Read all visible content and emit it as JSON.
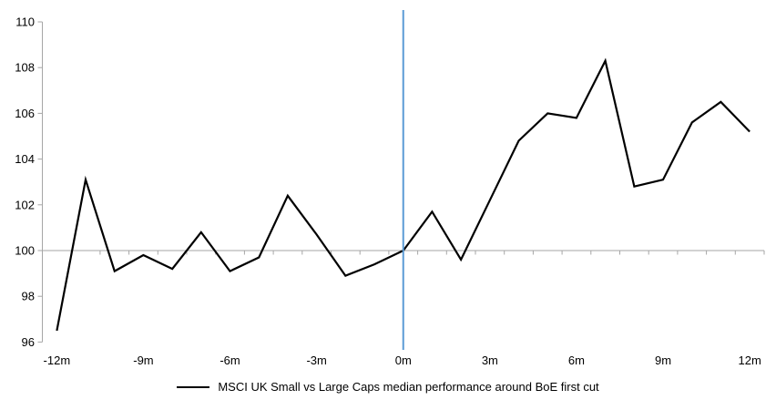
{
  "chart_data": {
    "type": "line",
    "x": [
      -12,
      -11,
      -10,
      -9,
      -8,
      -7,
      -6,
      -5,
      -4,
      -3,
      -2,
      -1,
      0,
      1,
      2,
      3,
      4,
      5,
      6,
      7,
      8,
      9,
      10,
      11,
      12
    ],
    "series": [
      {
        "name": "MSCI UK Small vs Large Caps median performance around BoE first cut",
        "color": "#000000",
        "values": [
          96.5,
          103.1,
          99.1,
          99.8,
          99.2,
          100.8,
          99.1,
          99.7,
          102.4,
          100.7,
          98.9,
          99.4,
          100.0,
          101.7,
          99.6,
          102.2,
          104.8,
          106.0,
          105.8,
          108.3,
          102.8,
          103.1,
          105.6,
          106.5,
          105.2
        ]
      }
    ],
    "xlim": [
      -12,
      12
    ],
    "ylim": [
      96,
      110
    ],
    "y_ticks": [
      96,
      98,
      100,
      102,
      104,
      106,
      108,
      110
    ],
    "x_tick_positions": [
      -12,
      -9,
      -6,
      -3,
      0,
      3,
      6,
      9,
      12
    ],
    "x_tick_labels": [
      "-12m",
      "-9m",
      "-6m",
      "-3m",
      "0m",
      "3m",
      "6m",
      "9m",
      "12m"
    ],
    "reference_lines": {
      "horizontal_baseline_at": 100,
      "vertical_event_line_at": 0
    },
    "colors": {
      "event_line": "#5B9BD5",
      "baseline": "#A6A6A6",
      "axis": "#A6A6A6",
      "tick_text": "#000000"
    },
    "grid": "off",
    "legend_position": "bottom"
  }
}
